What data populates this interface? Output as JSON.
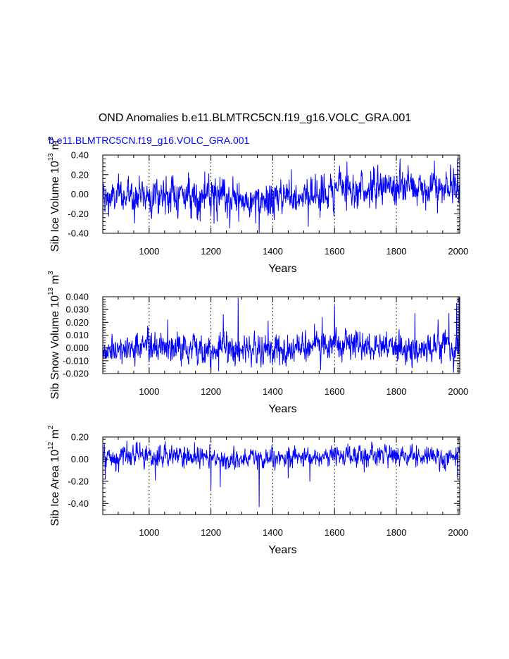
{
  "figure": {
    "title": "OND Anomalies b.e11.BLMTRC5CN.f19_g16.VOLC_GRA.001",
    "subtitle": "b.e11.BLMTRC5CN.f19_g16.VOLC_GRA.001",
    "line_color": "#0000ff"
  },
  "chart_data": [
    {
      "type": "line",
      "title": "",
      "xlabel": "Years",
      "ylabel": "Sib Ice Volume 10",
      "ylabel_exp": "13",
      "ylabel_unit": " m",
      "ylabel_unit_exp": "3",
      "xlim": [
        850,
        2005
      ],
      "ylim": [
        -0.4,
        0.4
      ],
      "xticks": [
        1000,
        1200,
        1400,
        1600,
        1800,
        2000
      ],
      "xtick_labels": [
        "1000",
        "1200",
        "1400",
        "1600",
        "1800",
        "2000"
      ],
      "yticks": [
        -0.4,
        -0.2,
        0.0,
        0.2,
        0.4
      ],
      "ytick_labels": [
        "-0.40",
        "-0.20",
        "0.00",
        "0.20",
        "0.40"
      ],
      "grid": "vertical dashed at major x ticks",
      "series": [
        {
          "name": "Sib Ice Volume",
          "color": "#0000ff",
          "x_start": 850,
          "x_end": 2005,
          "step": 1,
          "baseline": [
            [
              850,
              -0.06
            ],
            [
              950,
              0.0
            ],
            [
              1100,
              0.0
            ],
            [
              1200,
              -0.04
            ],
            [
              1260,
              -0.05
            ],
            [
              1330,
              -0.08
            ],
            [
              1360,
              -0.12
            ],
            [
              1420,
              -0.02
            ],
            [
              1500,
              0.0
            ],
            [
              1570,
              0.0
            ],
            [
              1620,
              0.08
            ],
            [
              1700,
              0.05
            ],
            [
              1800,
              0.08
            ],
            [
              1900,
              0.06
            ],
            [
              1950,
              0.04
            ],
            [
              2005,
              0.06
            ]
          ],
          "noise_sd": 0.085,
          "spikes": [
            [
              850,
              -0.32
            ],
            [
              1356,
              -0.4
            ],
            [
              1210,
              -0.3
            ],
            [
              1812,
              0.36
            ],
            [
              1640,
              0.33
            ],
            [
              1923,
              0.34
            ],
            [
              1975,
              0.3
            ],
            [
              1180,
              0.23
            ],
            [
              1515,
              -0.33
            ],
            [
              1290,
              -0.28
            ],
            [
              1998,
              0.35
            ],
            [
              1460,
              0.25
            ]
          ]
        }
      ]
    },
    {
      "type": "line",
      "title": "",
      "xlabel": "Years",
      "ylabel": "Sib Snow Volume 10",
      "ylabel_exp": "13",
      "ylabel_unit": " m",
      "ylabel_unit_exp": "3",
      "xlim": [
        850,
        2005
      ],
      "ylim": [
        -0.02,
        0.04
      ],
      "xticks": [
        1000,
        1200,
        1400,
        1600,
        1800,
        2000
      ],
      "xtick_labels": [
        "1000",
        "1200",
        "1400",
        "1600",
        "1800",
        "2000"
      ],
      "yticks": [
        -0.02,
        -0.01,
        0.0,
        0.01,
        0.02,
        0.03,
        0.04
      ],
      "ytick_labels": [
        "-0.020",
        "-0.010",
        "0.000",
        "0.010",
        "0.020",
        "0.030",
        "0.040"
      ],
      "grid": "vertical dashed at major x ticks",
      "series": [
        {
          "name": "Sib Snow Volume",
          "color": "#0000ff",
          "x_start": 850,
          "x_end": 2005,
          "step": 1,
          "baseline": [
            [
              850,
              -0.002
            ],
            [
              950,
              0.0
            ],
            [
              1100,
              0.0
            ],
            [
              1200,
              0.0
            ],
            [
              1400,
              -0.002
            ],
            [
              1500,
              0.0
            ],
            [
              1600,
              0.002
            ],
            [
              1700,
              0.001
            ],
            [
              1800,
              0.0
            ],
            [
              1900,
              0.001
            ],
            [
              2005,
              0.0
            ]
          ],
          "noise_sd": 0.0055,
          "spikes": [
            [
              1288,
              0.039
            ],
            [
              2003,
              0.039
            ],
            [
              1600,
              0.033
            ],
            [
              1860,
              0.027
            ],
            [
              1995,
              0.035
            ],
            [
              1240,
              0.026
            ],
            [
              1970,
              0.027
            ],
            [
              1060,
              0.022
            ],
            [
              1225,
              -0.018
            ],
            [
              1200,
              -0.017
            ],
            [
              1560,
              0.024
            ],
            [
              1385,
              0.021
            ]
          ]
        }
      ]
    },
    {
      "type": "line",
      "title": "",
      "xlabel": "Years",
      "ylabel": "Sib Ice Area 10",
      "ylabel_exp": "12",
      "ylabel_unit": " m",
      "ylabel_unit_exp": "2",
      "xlim": [
        850,
        2005
      ],
      "ylim": [
        -0.5,
        0.2
      ],
      "xticks": [
        1000,
        1200,
        1400,
        1600,
        1800,
        2000
      ],
      "xtick_labels": [
        "1000",
        "1200",
        "1400",
        "1600",
        "1800",
        "2000"
      ],
      "yticks": [
        -0.4,
        -0.2,
        0.0,
        0.2
      ],
      "ytick_labels": [
        "-0.40",
        "-0.20",
        "0.00",
        "0.20"
      ],
      "grid": "vertical dashed at major x ticks",
      "series": [
        {
          "name": "Sib Ice Area",
          "color": "#0000ff",
          "x_start": 850,
          "x_end": 2005,
          "step": 1,
          "baseline": [
            [
              850,
              0.0
            ],
            [
              950,
              0.02
            ],
            [
              1100,
              0.02
            ],
            [
              1200,
              0.0
            ],
            [
              1400,
              0.0
            ],
            [
              1600,
              0.03
            ],
            [
              1800,
              0.04
            ],
            [
              2005,
              0.02
            ]
          ],
          "noise_sd": 0.045,
          "spikes": [
            [
              1356,
              -0.43
            ],
            [
              1200,
              -0.28
            ],
            [
              1230,
              -0.25
            ],
            [
              858,
              -0.18
            ],
            [
              1998,
              -0.17
            ],
            [
              1020,
              -0.19
            ],
            [
              1450,
              -0.17
            ],
            [
              1520,
              -0.2
            ]
          ]
        }
      ]
    }
  ]
}
